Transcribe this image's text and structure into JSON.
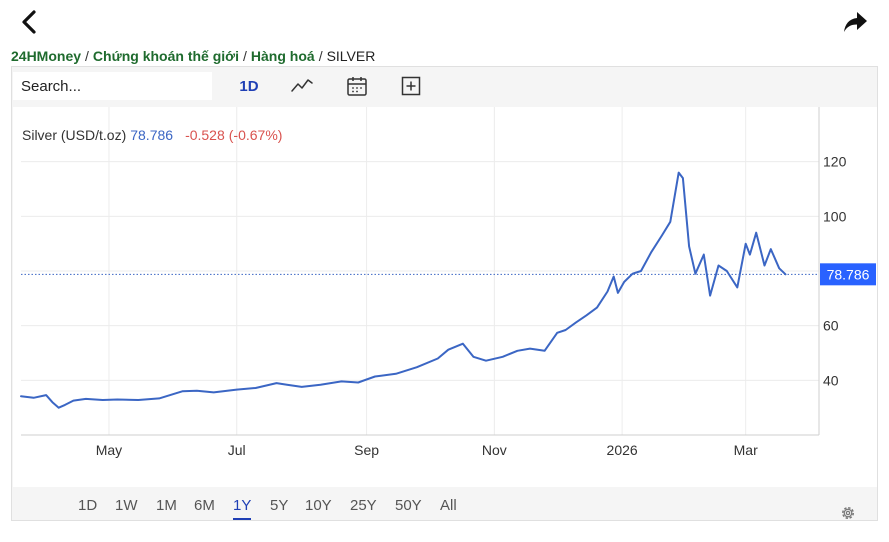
{
  "nav": {
    "back_icon": "chevron-left-icon",
    "share_icon": "share-arrow-icon"
  },
  "breadcrumb": {
    "items": [
      "24HMoney",
      "Chứng khoán thế giới",
      "Hàng hoá"
    ],
    "separator": "/",
    "current": "SILVER"
  },
  "toolbar": {
    "search_placeholder": "Search...",
    "interval_label": "1D",
    "chart_type_icon": "line-chart-icon",
    "calendar_icon": "calendar-icon",
    "compare_icon": "add-compare-icon"
  },
  "legend": {
    "name": "Silver (USD/t.oz)",
    "price": "78.786",
    "change": "-0.528",
    "change_pct": "(-0.67%)"
  },
  "ranges": {
    "items": [
      "1D",
      "1W",
      "1M",
      "6M",
      "1Y",
      "5Y",
      "10Y",
      "25Y",
      "50Y",
      "All"
    ],
    "active": "1Y"
  },
  "settings_icon": "gear-icon",
  "colors": {
    "line": "#3b66c4",
    "price_tag": "#2962ff",
    "negative": "#d9534f",
    "breadcrumb_link": "#1f6b2e",
    "active": "#1f3fb5"
  },
  "chart_data": {
    "type": "line",
    "title": "",
    "xlabel": "",
    "ylabel": "",
    "x_tick_labels": [
      "May",
      "Jul",
      "Sep",
      "Nov",
      "2026",
      "Mar"
    ],
    "x_tick_dates": [
      "2025-05-01",
      "2025-07-01",
      "2025-09-01",
      "2025-11-01",
      "2026-01-01",
      "2026-03-01"
    ],
    "y_ticks": [
      40,
      60,
      80,
      100,
      120
    ],
    "y_tick_labels": [
      "40",
      "60",
      "",
      "100",
      "120"
    ],
    "ylim": [
      20,
      140
    ],
    "xlim": [
      "2025-03-20",
      "2026-04-05"
    ],
    "grid": true,
    "last_value": 78.786,
    "last_value_label": "78.786",
    "series": [
      {
        "x": [
          "2025-03-20",
          "2025-03-26",
          "2025-04-01",
          "2025-04-04",
          "2025-04-07",
          "2025-04-10",
          "2025-04-14",
          "2025-04-20",
          "2025-04-28",
          "2025-05-05",
          "2025-05-15",
          "2025-05-25",
          "2025-06-05",
          "2025-06-12",
          "2025-06-20",
          "2025-07-01",
          "2025-07-10",
          "2025-07-20",
          "2025-07-25",
          "2025-08-01",
          "2025-08-10",
          "2025-08-20",
          "2025-08-28",
          "2025-09-05",
          "2025-09-15",
          "2025-09-25",
          "2025-10-05",
          "2025-10-10",
          "2025-10-17",
          "2025-10-22",
          "2025-10-28",
          "2025-11-05",
          "2025-11-12",
          "2025-11-18",
          "2025-11-25",
          "2025-12-01",
          "2025-12-05",
          "2025-12-10",
          "2025-12-15",
          "2025-12-20",
          "2025-12-25",
          "2025-12-28",
          "2025-12-30",
          "2026-01-02",
          "2026-01-06",
          "2026-01-10",
          "2026-01-15",
          "2026-01-20",
          "2026-01-24",
          "2026-01-28",
          "2026-01-30",
          "2026-02-02",
          "2026-02-05",
          "2026-02-09",
          "2026-02-12",
          "2026-02-16",
          "2026-02-20",
          "2026-02-25",
          "2026-03-01",
          "2026-03-03",
          "2026-03-06",
          "2026-03-10",
          "2026-03-13",
          "2026-03-17",
          "2026-03-20"
        ],
        "y": [
          34.2,
          33.6,
          34.6,
          32.0,
          30.0,
          31.0,
          32.6,
          33.2,
          32.8,
          33.0,
          32.8,
          33.4,
          36.0,
          36.2,
          35.6,
          36.6,
          37.2,
          39.0,
          38.4,
          37.6,
          38.4,
          39.6,
          39.2,
          41.4,
          42.4,
          44.8,
          48.0,
          51.2,
          53.4,
          48.6,
          47.2,
          48.6,
          50.8,
          51.6,
          50.8,
          57.4,
          58.4,
          61.2,
          63.8,
          66.6,
          72.5,
          78.0,
          72.0,
          76.0,
          79.0,
          80.0,
          87.0,
          93.0,
          98.0,
          116.0,
          114.0,
          89.0,
          79.0,
          86.0,
          71.0,
          82.0,
          80.0,
          74.0,
          90.0,
          86.0,
          94.0,
          82.0,
          88.0,
          81.0,
          78.8
        ]
      }
    ]
  }
}
